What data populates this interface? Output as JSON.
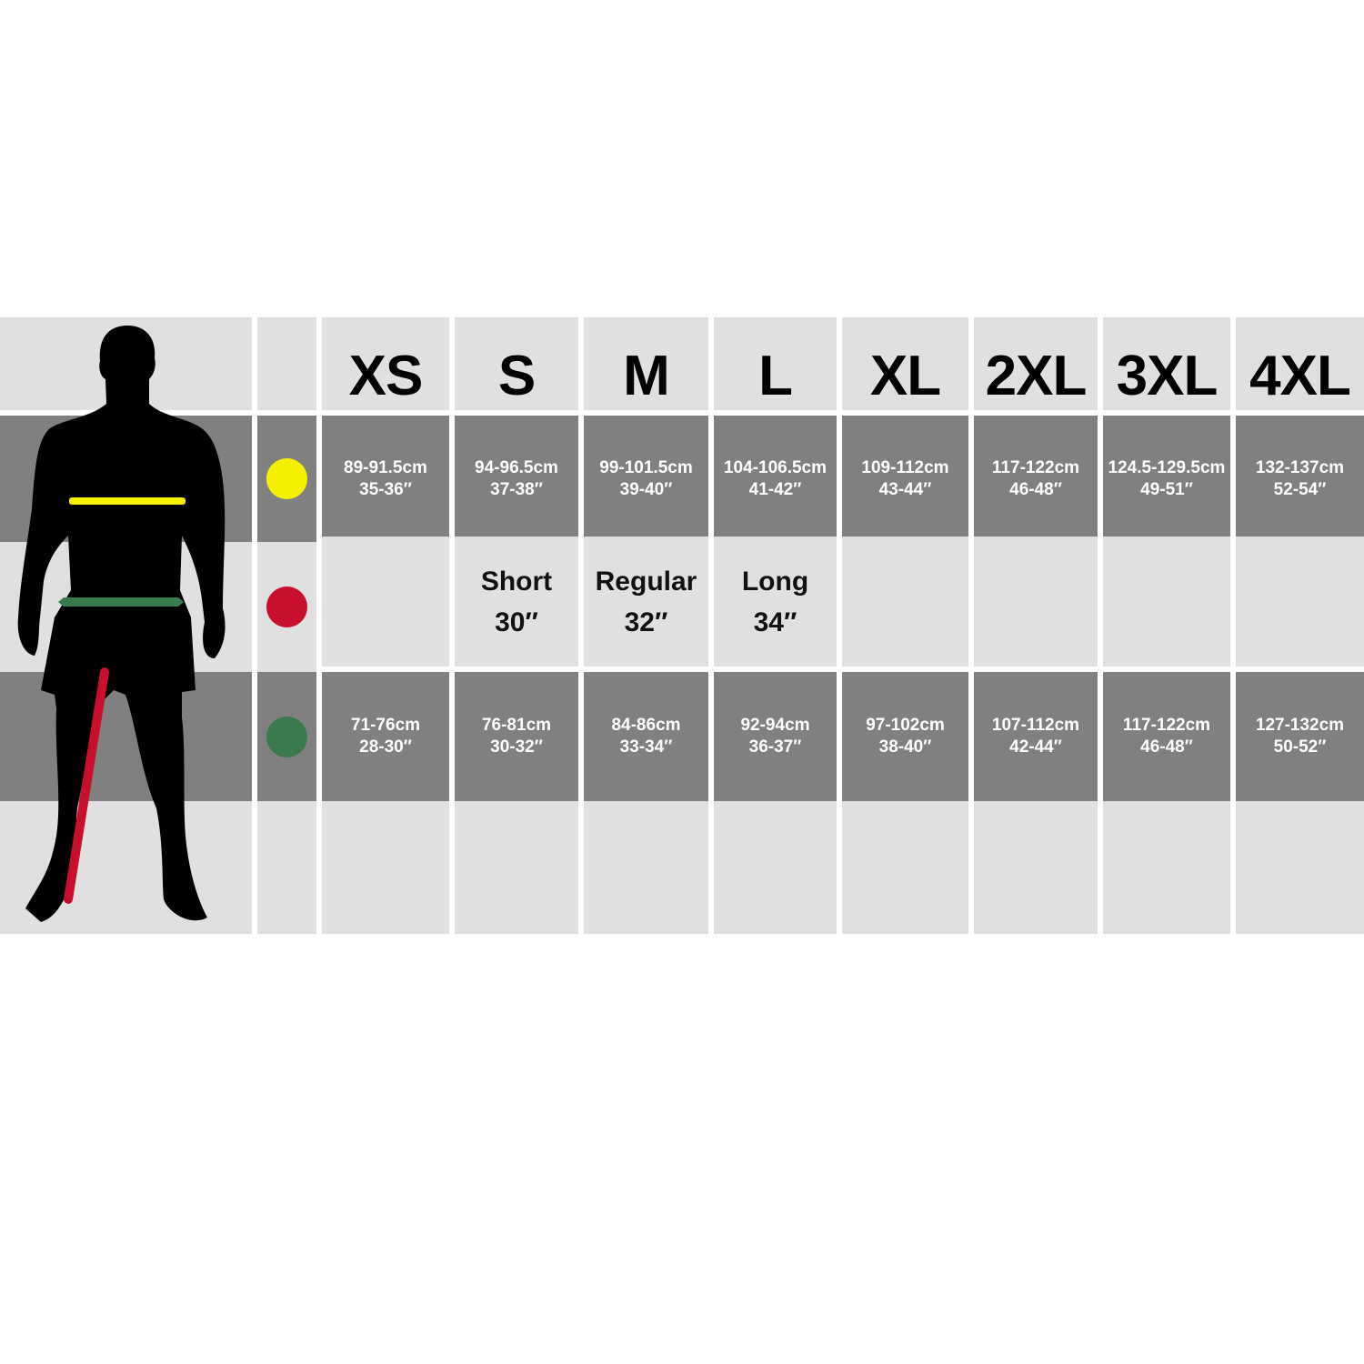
{
  "sizes": [
    "XS",
    "S",
    "M",
    "L",
    "XL",
    "2XL",
    "3XL",
    "4XL"
  ],
  "markers": [
    {
      "name": "chest",
      "color": "#f5f000"
    },
    {
      "name": "waist",
      "color": "#c8102e"
    },
    {
      "name": "inseam",
      "color": "#3a7a4e"
    }
  ],
  "chest": [
    {
      "cm": "89-91.5cm",
      "in": "35-36″"
    },
    {
      "cm": "94-96.5cm",
      "in": "37-38″"
    },
    {
      "cm": "99-101.5cm",
      "in": "39-40″"
    },
    {
      "cm": "104-106.5cm",
      "in": "41-42″"
    },
    {
      "cm": "109-112cm",
      "in": "43-44″"
    },
    {
      "cm": "117-122cm",
      "in": "46-48″"
    },
    {
      "cm": "124.5-129.5cm",
      "in": "49-51″"
    },
    {
      "cm": "132-137cm",
      "in": "52-54″"
    }
  ],
  "leg_length": [
    {
      "label": "",
      "value": ""
    },
    {
      "label": "Short",
      "value": "30″"
    },
    {
      "label": "Regular",
      "value": "32″"
    },
    {
      "label": "Long",
      "value": "34″"
    },
    {
      "label": "",
      "value": ""
    },
    {
      "label": "",
      "value": ""
    },
    {
      "label": "",
      "value": ""
    },
    {
      "label": "",
      "value": ""
    }
  ],
  "waist": [
    {
      "cm": "71-76cm",
      "in": "28-30″"
    },
    {
      "cm": "76-81cm",
      "in": "30-32″"
    },
    {
      "cm": "84-86cm",
      "in": "33-34″"
    },
    {
      "cm": "92-94cm",
      "in": "36-37″"
    },
    {
      "cm": "97-102cm",
      "in": "38-40″"
    },
    {
      "cm": "107-112cm",
      "in": "42-44″"
    },
    {
      "cm": "117-122cm",
      "in": "46-48″"
    },
    {
      "cm": "127-132cm",
      "in": "50-52″"
    }
  ]
}
